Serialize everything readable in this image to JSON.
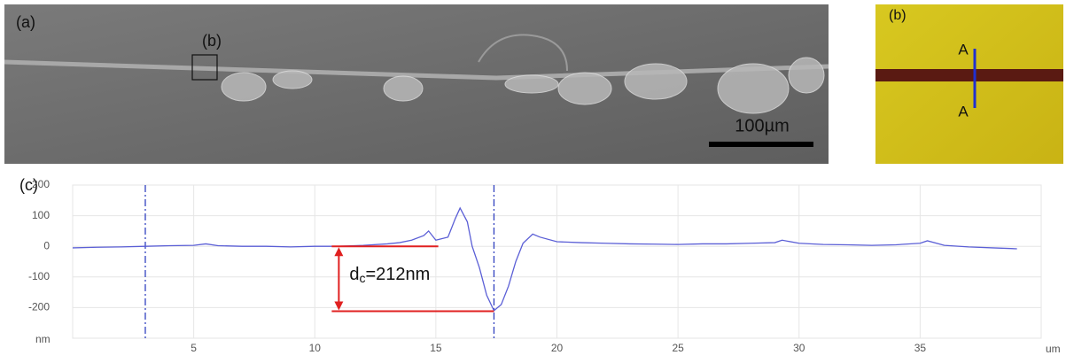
{
  "figure": {
    "panel_a": {
      "label": "(a)",
      "inset_label": "(b)",
      "scale_bar": "100µm"
    },
    "panel_b": {
      "label": "(b)",
      "marker_top": "A",
      "marker_bottom": "A"
    },
    "panel_c": {
      "label": "(c)"
    }
  },
  "chart_data": {
    "type": "line",
    "x_label": "um",
    "y_label": "nm",
    "x": [
      0,
      1,
      2,
      3,
      4,
      5,
      5.5,
      6,
      7,
      8,
      9,
      10,
      11,
      12,
      13,
      13.5,
      14,
      14.5,
      14.7,
      15,
      15.5,
      15.8,
      16,
      16.3,
      16.5,
      16.8,
      17.1,
      17.4,
      17.7,
      18,
      18.3,
      18.6,
      19,
      19.3,
      20,
      21,
      22,
      23,
      24,
      25,
      26,
      27,
      28,
      29,
      29.3,
      30,
      31,
      32,
      33,
      34,
      35,
      35.3,
      36,
      37,
      38,
      39
    ],
    "series": [
      {
        "color": "#5b5fd6",
        "values": [
          -5,
          -3,
          -2,
          0,
          2,
          3,
          8,
          2,
          0,
          0,
          -2,
          0,
          0,
          3,
          8,
          12,
          20,
          35,
          50,
          20,
          30,
          90,
          125,
          80,
          0,
          -70,
          -160,
          -210,
          -190,
          -130,
          -50,
          10,
          40,
          30,
          15,
          12,
          10,
          8,
          7,
          6,
          8,
          8,
          10,
          12,
          20,
          10,
          6,
          5,
          3,
          5,
          10,
          18,
          3,
          -2,
          -5,
          -8
        ]
      }
    ],
    "xlim": [
      0,
      40
    ],
    "ylim": [
      -300,
      200
    ],
    "xticks": [
      5,
      10,
      15,
      20,
      25,
      30,
      35
    ],
    "yticks": [
      -200,
      -100,
      0,
      100,
      200
    ],
    "grid": true,
    "vlines": [
      3,
      17.4
    ],
    "depth_marker": {
      "top": 0,
      "bottom": -212,
      "x_start": 10.7,
      "x_end_top": 15.1,
      "x_end_bottom": 17.4,
      "color": "#e02020"
    },
    "annotation": {
      "main": "d",
      "sub": "c",
      "rest": "=212nm"
    }
  }
}
